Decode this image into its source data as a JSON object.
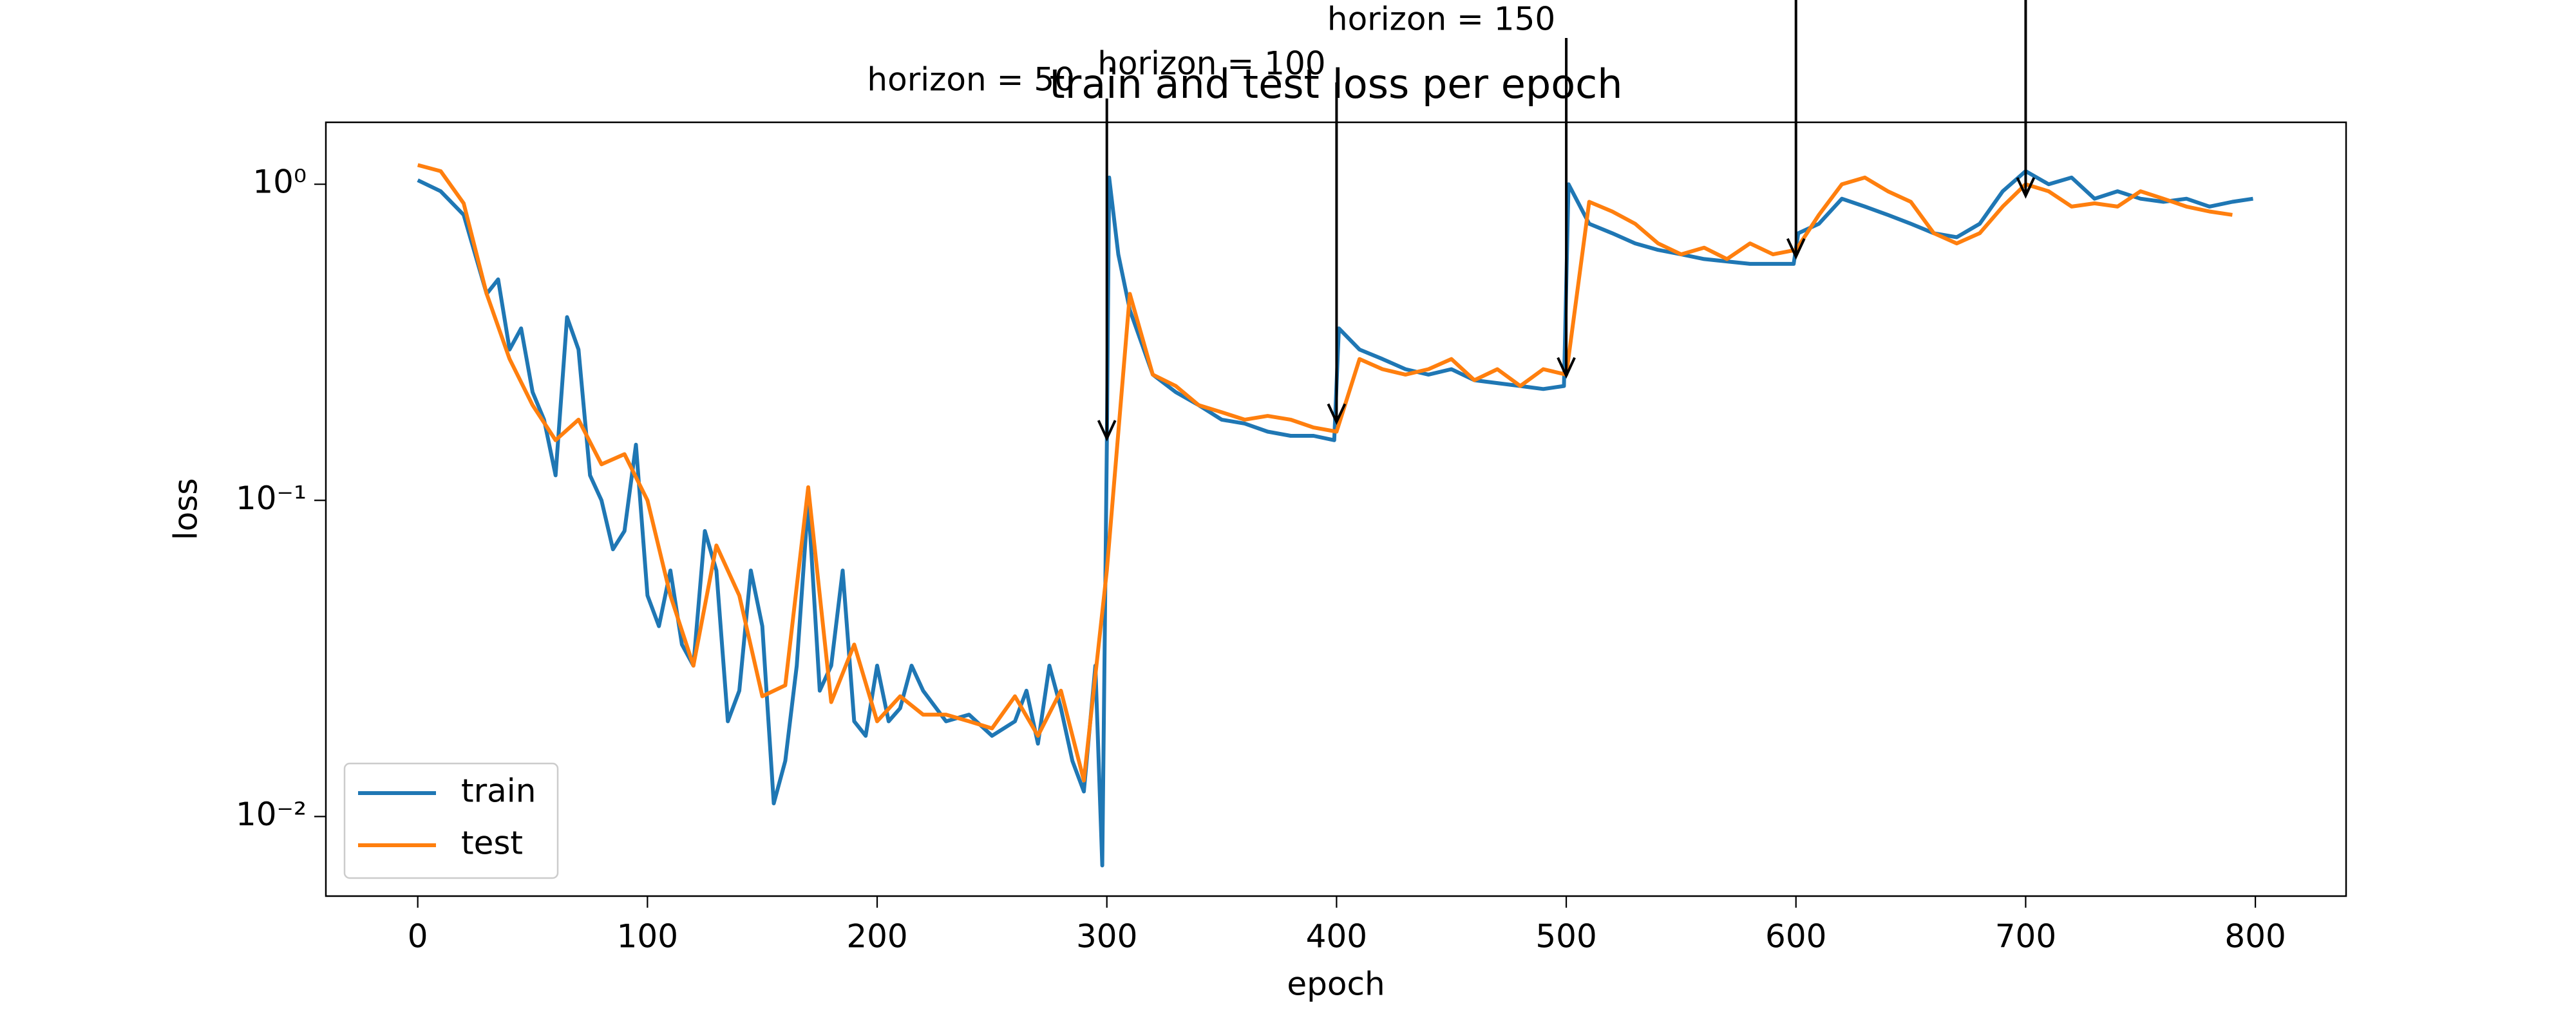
{
  "chart_data": {
    "type": "line",
    "title": "train and test loss per epoch",
    "xlabel": "epoch",
    "ylabel": "loss",
    "yscale": "log",
    "legend": "lower left",
    "xlim": [
      -40,
      839.5
    ],
    "ylim": [
      0.0056,
      1.57
    ],
    "xticks": [
      0,
      100,
      200,
      300,
      400,
      500,
      600,
      700,
      800
    ],
    "yticks": [
      {
        "value": 1,
        "label": "10⁰"
      },
      {
        "value": 0.1,
        "label": "10⁻¹"
      },
      {
        "value": 0.01,
        "label": "10⁻²"
      }
    ],
    "series": [
      {
        "name": "train",
        "color": "#1f77b4",
        "x": [
          0,
          10,
          20,
          30,
          35,
          40,
          45,
          50,
          55,
          60,
          65,
          70,
          75,
          80,
          85,
          90,
          95,
          100,
          105,
          110,
          115,
          120,
          125,
          130,
          135,
          140,
          145,
          150,
          155,
          160,
          165,
          170,
          175,
          180,
          185,
          190,
          195,
          200,
          205,
          210,
          215,
          220,
          230,
          240,
          250,
          260,
          265,
          270,
          275,
          280,
          285,
          290,
          295,
          298,
          300,
          301,
          305,
          310,
          320,
          330,
          340,
          350,
          360,
          370,
          380,
          390,
          399,
          401,
          410,
          420,
          430,
          440,
          450,
          460,
          470,
          480,
          490,
          499,
          501,
          510,
          520,
          530,
          540,
          550,
          560,
          570,
          580,
          590,
          599,
          601,
          610,
          620,
          630,
          640,
          650,
          660,
          670,
          680,
          690,
          700,
          710,
          720,
          730,
          740,
          750,
          760,
          770,
          780,
          790,
          799
        ],
        "values": [
          1.03,
          0.95,
          0.8,
          0.45,
          0.5,
          0.3,
          0.35,
          0.22,
          0.18,
          0.12,
          0.38,
          0.3,
          0.12,
          0.1,
          0.07,
          0.08,
          0.15,
          0.05,
          0.04,
          0.06,
          0.035,
          0.03,
          0.08,
          0.06,
          0.02,
          0.025,
          0.06,
          0.04,
          0.011,
          0.015,
          0.03,
          0.1,
          0.025,
          0.03,
          0.06,
          0.02,
          0.018,
          0.03,
          0.02,
          0.022,
          0.03,
          0.025,
          0.02,
          0.021,
          0.018,
          0.02,
          0.025,
          0.017,
          0.03,
          0.022,
          0.015,
          0.012,
          0.03,
          0.007,
          0.15,
          1.05,
          0.6,
          0.4,
          0.25,
          0.22,
          0.2,
          0.18,
          0.175,
          0.165,
          0.16,
          0.16,
          0.155,
          0.35,
          0.3,
          0.28,
          0.26,
          0.25,
          0.26,
          0.24,
          0.235,
          0.23,
          0.225,
          0.23,
          1.0,
          0.75,
          0.7,
          0.65,
          0.62,
          0.6,
          0.58,
          0.57,
          0.56,
          0.56,
          0.56,
          0.7,
          0.75,
          0.9,
          0.85,
          0.8,
          0.75,
          0.7,
          0.68,
          0.75,
          0.95,
          1.1,
          1.0,
          1.05,
          0.9,
          0.95,
          0.9,
          0.88,
          0.9,
          0.85,
          0.88,
          0.9
        ]
      },
      {
        "name": "test",
        "color": "#ff7f0e",
        "x": [
          0,
          10,
          20,
          30,
          40,
          50,
          60,
          70,
          80,
          90,
          100,
          110,
          120,
          130,
          140,
          150,
          160,
          170,
          180,
          190,
          200,
          210,
          220,
          230,
          240,
          250,
          260,
          270,
          280,
          290,
          300,
          310,
          320,
          330,
          340,
          350,
          360,
          370,
          380,
          390,
          400,
          410,
          420,
          430,
          440,
          450,
          460,
          470,
          480,
          490,
          500,
          510,
          520,
          530,
          540,
          550,
          560,
          570,
          580,
          590,
          600,
          610,
          620,
          630,
          640,
          650,
          660,
          670,
          680,
          690,
          700,
          710,
          720,
          730,
          740,
          750,
          760,
          770,
          780,
          790
        ],
        "values": [
          1.15,
          1.1,
          0.87,
          0.45,
          0.28,
          0.2,
          0.155,
          0.18,
          0.13,
          0.14,
          0.1,
          0.05,
          0.03,
          0.072,
          0.05,
          0.024,
          0.026,
          0.11,
          0.023,
          0.035,
          0.02,
          0.024,
          0.021,
          0.021,
          0.02,
          0.019,
          0.024,
          0.018,
          0.025,
          0.013,
          0.06,
          0.45,
          0.25,
          0.23,
          0.2,
          0.19,
          0.18,
          0.185,
          0.18,
          0.17,
          0.165,
          0.28,
          0.26,
          0.25,
          0.26,
          0.28,
          0.24,
          0.26,
          0.23,
          0.26,
          0.25,
          0.88,
          0.82,
          0.75,
          0.65,
          0.6,
          0.63,
          0.58,
          0.65,
          0.6,
          0.62,
          0.8,
          1.0,
          1.05,
          0.95,
          0.88,
          0.7,
          0.65,
          0.7,
          0.85,
          1.0,
          0.95,
          0.85,
          0.87,
          0.85,
          0.95,
          0.9,
          0.85,
          0.82,
          0.8
        ]
      }
    ],
    "annotations": [
      {
        "text": "horizon = 50",
        "x": 300,
        "y": 0.157
      },
      {
        "text": "horizon = 100",
        "x": 400,
        "y": 0.177
      },
      {
        "text": "horizon = 150",
        "x": 500,
        "y": 0.248
      },
      {
        "text": null,
        "x": 600,
        "y": 0.59
      },
      {
        "text": null,
        "x": 700,
        "y": 0.92
      }
    ]
  }
}
